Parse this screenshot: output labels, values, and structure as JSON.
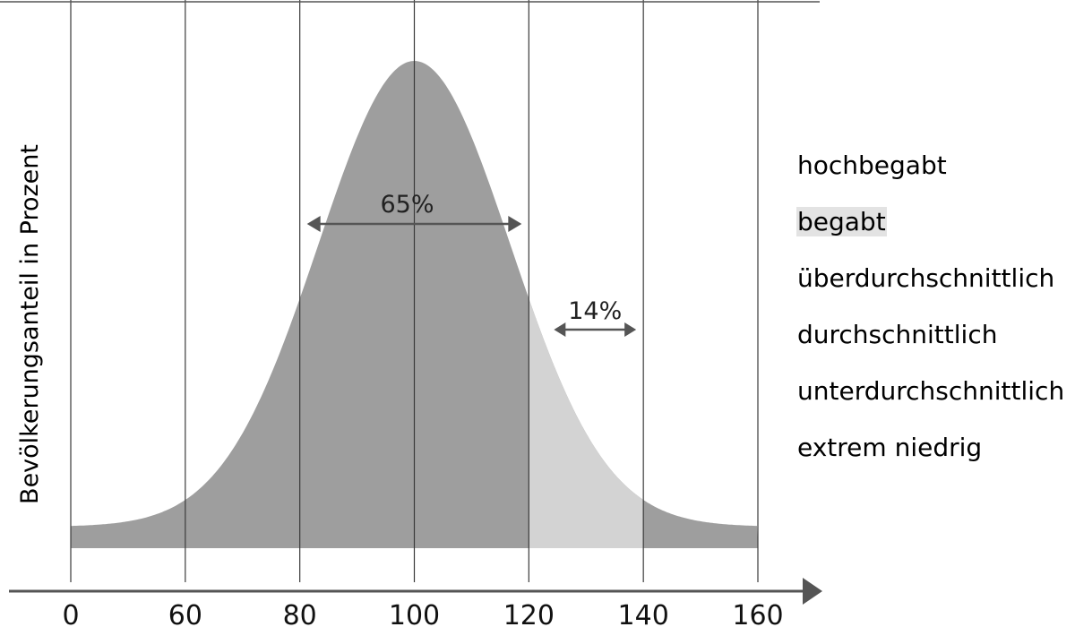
{
  "chart_data": {
    "type": "area",
    "title": "",
    "ylabel": "Bevölkerungsanteil in Prozent",
    "xlabel": "",
    "x_ticks": [
      0,
      60,
      80,
      100,
      120,
      140,
      160
    ],
    "grid": true,
    "legend_position": "right",
    "curve_color": "#9e9e9e",
    "highlight_color": "#d3d3d3",
    "axis_color": "#555555",
    "annotations": [
      {
        "label": "65%",
        "from": 80,
        "to": 120
      },
      {
        "label": "14%",
        "from": 120,
        "to": 140
      }
    ],
    "highlight_range": [
      120,
      140
    ]
  },
  "legend": {
    "items": [
      {
        "label": "hochbegabt",
        "highlight": false
      },
      {
        "label": "begabt",
        "highlight": true
      },
      {
        "label": "überdurchschnittlich",
        "highlight": false
      },
      {
        "label": "durchschnittlich",
        "highlight": false
      },
      {
        "label": "unterdurchschnittlich",
        "highlight": false
      },
      {
        "label": "extrem niedrig",
        "highlight": false
      }
    ]
  }
}
